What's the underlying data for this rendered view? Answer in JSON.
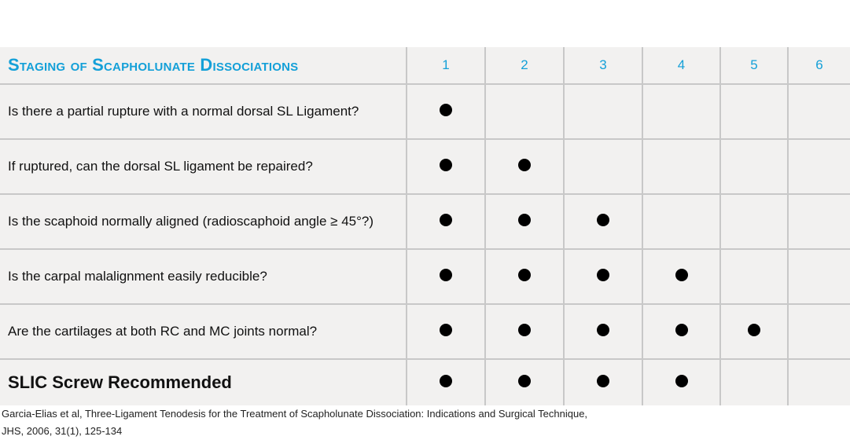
{
  "table": {
    "title": "Staging of Scapholunate Dissociations",
    "stages": [
      "1",
      "2",
      "3",
      "4",
      "5",
      "6"
    ],
    "rows": [
      {
        "question": "Is there a partial rupture with a normal dorsal SL Ligament?",
        "marks": [
          true,
          false,
          false,
          false,
          false,
          false
        ]
      },
      {
        "question": "If ruptured, can the dorsal SL ligament be repaired?",
        "marks": [
          true,
          true,
          false,
          false,
          false,
          false
        ]
      },
      {
        "question": "Is the scaphoid normally aligned (radioscaphoid angle ≥ 45°?)",
        "marks": [
          true,
          true,
          true,
          false,
          false,
          false
        ]
      },
      {
        "question": "Is the carpal malalignment easily reducible?",
        "marks": [
          true,
          true,
          true,
          true,
          false,
          false
        ]
      },
      {
        "question": "Are the cartilages at both RC and MC joints normal?",
        "marks": [
          true,
          true,
          true,
          true,
          true,
          false
        ]
      }
    ],
    "recommendation": {
      "label": "SLIC Screw Recommended",
      "marks": [
        true,
        true,
        true,
        true,
        false,
        false
      ]
    }
  },
  "citation": {
    "line1": "Garcia-Elias et al, Three-Ligament Tenodesis for the Treatment of Scapholunate Dissociation: Indications and Surgical Technique,",
    "line2": "JHS, 2006, 31(1), 125-134"
  }
}
